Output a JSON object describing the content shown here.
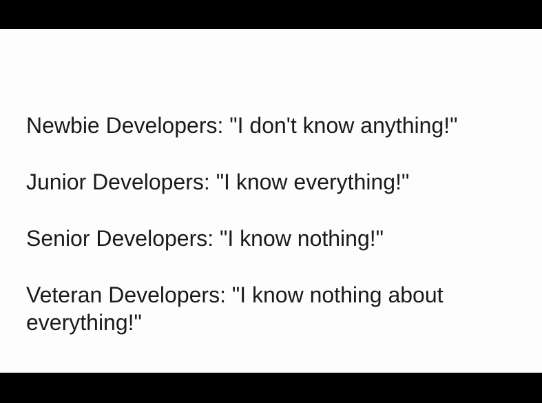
{
  "lines": [
    "Newbie Developers: \"I don't know anything!\"",
    "Junior Developers: \"I know everything!\"",
    "Senior Developers: \"I know nothing!\"",
    "Veteran Developers: \"I know nothing about everything!\""
  ],
  "colors": {
    "background": "#fdfdfd",
    "text": "#1a1a1a",
    "letterbox": "#000000"
  }
}
